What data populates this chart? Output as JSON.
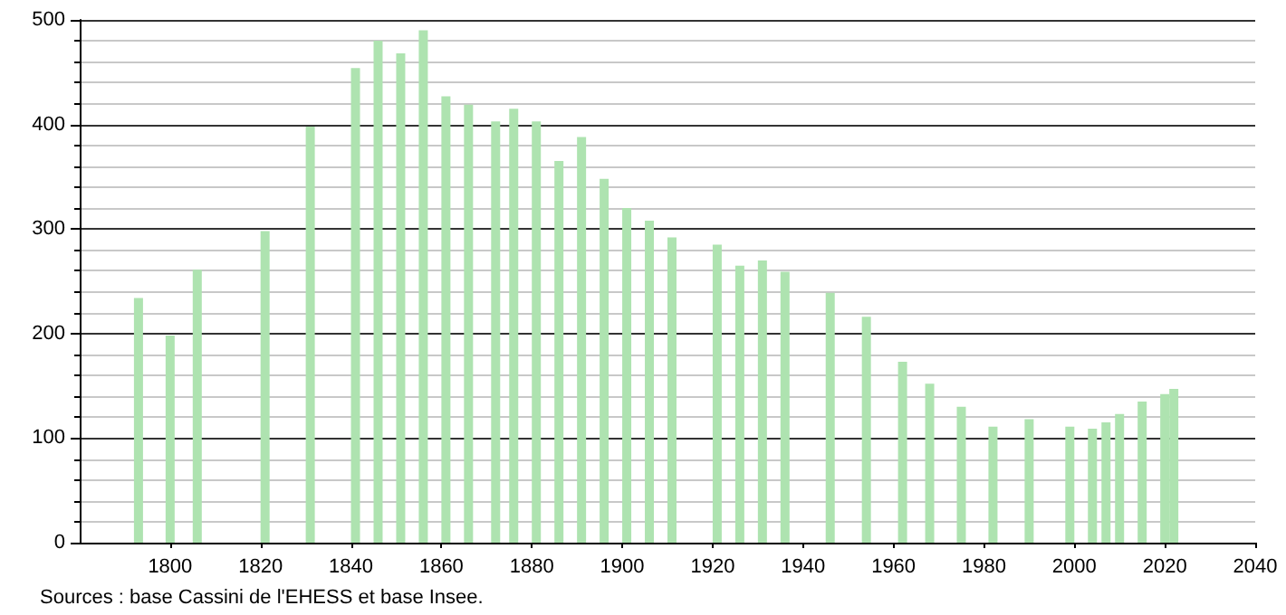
{
  "chart_data": {
    "type": "bar",
    "color": "#aee3b0",
    "x": [
      1793,
      1800,
      1806,
      1821,
      1831,
      1841,
      1846,
      1851,
      1856,
      1861,
      1866,
      1872,
      1876,
      1881,
      1886,
      1891,
      1896,
      1901,
      1906,
      1911,
      1921,
      1926,
      1931,
      1936,
      1946,
      1954,
      1962,
      1968,
      1975,
      1982,
      1990,
      1999,
      2004,
      2007,
      2010,
      2015,
      2020,
      2022
    ],
    "values": [
      234,
      198,
      261,
      298,
      398,
      454,
      480,
      468,
      490,
      427,
      419,
      403,
      415,
      403,
      365,
      388,
      348,
      320,
      308,
      292,
      285,
      265,
      270,
      259,
      239,
      216,
      173,
      152,
      130,
      111,
      118,
      111,
      109,
      115,
      123,
      135,
      142,
      147
    ],
    "xlim": [
      1780,
      2040
    ],
    "xticks": [
      1800,
      1820,
      1840,
      1860,
      1880,
      1900,
      1920,
      1940,
      1960,
      1980,
      2000,
      2020,
      2040
    ],
    "ylim": [
      0,
      500
    ],
    "yticks": [
      0,
      100,
      200,
      300,
      400,
      500
    ],
    "grid": "y",
    "annotations": [
      "Sources : base Cassini de l'EHESS et base Insee."
    ]
  }
}
